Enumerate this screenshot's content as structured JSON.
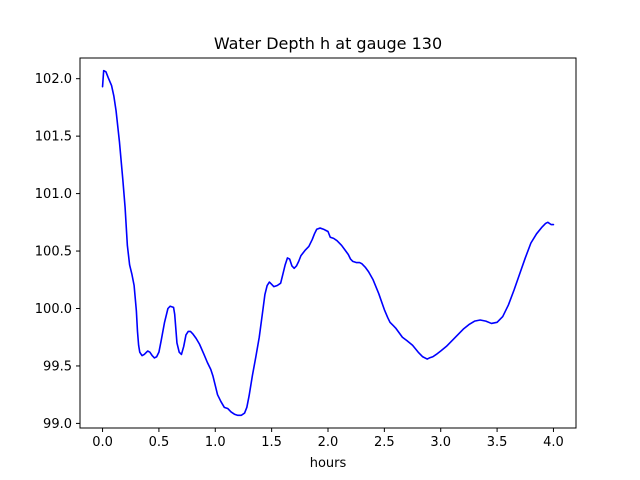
{
  "chart_data": {
    "type": "line",
    "title": "Water Depth h at gauge 130",
    "xlabel": "hours",
    "ylabel": "",
    "xlim": [
      -0.2,
      4.2
    ],
    "ylim": [
      98.96,
      102.18
    ],
    "xticks": [
      0.0,
      0.5,
      1.0,
      1.5,
      2.0,
      2.5,
      3.0,
      3.5,
      4.0
    ],
    "xtick_labels": [
      "0.0",
      "0.5",
      "1.0",
      "1.5",
      "2.0",
      "2.5",
      "3.0",
      "3.5",
      "4.0"
    ],
    "yticks": [
      99.0,
      99.5,
      100.0,
      100.5,
      101.0,
      101.5,
      102.0
    ],
    "ytick_labels": [
      "99.0",
      "99.5",
      "100.0",
      "100.5",
      "101.0",
      "101.5",
      "102.0"
    ],
    "grid": false,
    "series": [
      {
        "color": "#0000ff",
        "x": [
          0.0,
          0.01,
          0.03,
          0.05,
          0.08,
          0.1,
          0.12,
          0.15,
          0.18,
          0.2,
          0.22,
          0.24,
          0.26,
          0.28,
          0.3,
          0.31,
          0.32,
          0.33,
          0.35,
          0.37,
          0.4,
          0.42,
          0.44,
          0.46,
          0.48,
          0.5,
          0.52,
          0.55,
          0.58,
          0.6,
          0.63,
          0.64,
          0.66,
          0.68,
          0.7,
          0.72,
          0.74,
          0.76,
          0.78,
          0.8,
          0.83,
          0.86,
          0.9,
          0.93,
          0.96,
          0.98,
          1.0,
          1.02,
          1.05,
          1.08,
          1.11,
          1.14,
          1.17,
          1.2,
          1.23,
          1.26,
          1.28,
          1.3,
          1.33,
          1.36,
          1.39,
          1.42,
          1.44,
          1.46,
          1.48,
          1.5,
          1.52,
          1.55,
          1.58,
          1.6,
          1.62,
          1.64,
          1.66,
          1.68,
          1.7,
          1.72,
          1.74,
          1.76,
          1.8,
          1.83,
          1.86,
          1.88,
          1.9,
          1.93,
          1.96,
          1.98,
          2.0,
          2.02,
          2.05,
          2.08,
          2.12,
          2.15,
          2.18,
          2.2,
          2.22,
          2.25,
          2.28,
          2.3,
          2.33,
          2.36,
          2.4,
          2.45,
          2.5,
          2.53,
          2.55,
          2.58,
          2.6,
          2.63,
          2.66,
          2.7,
          2.75,
          2.8,
          2.84,
          2.88,
          2.9,
          2.93,
          2.96,
          3.0,
          3.05,
          3.1,
          3.15,
          3.2,
          3.25,
          3.3,
          3.35,
          3.4,
          3.45,
          3.5,
          3.55,
          3.6,
          3.65,
          3.7,
          3.75,
          3.8,
          3.85,
          3.9,
          3.93,
          3.95,
          3.98,
          4.0
        ],
        "y": [
          101.93,
          102.07,
          102.06,
          102.01,
          101.94,
          101.85,
          101.72,
          101.45,
          101.12,
          100.88,
          100.55,
          100.38,
          100.3,
          100.2,
          99.98,
          99.8,
          99.68,
          99.62,
          99.59,
          99.6,
          99.63,
          99.62,
          99.59,
          99.57,
          99.58,
          99.62,
          99.72,
          99.88,
          100.0,
          100.02,
          100.01,
          99.95,
          99.7,
          99.62,
          99.6,
          99.67,
          99.77,
          99.8,
          99.8,
          99.78,
          99.74,
          99.69,
          99.6,
          99.53,
          99.47,
          99.41,
          99.33,
          99.25,
          99.19,
          99.14,
          99.13,
          99.1,
          99.08,
          99.07,
          99.07,
          99.09,
          99.14,
          99.24,
          99.42,
          99.58,
          99.75,
          99.97,
          100.12,
          100.2,
          100.23,
          100.21,
          100.19,
          100.2,
          100.22,
          100.3,
          100.38,
          100.44,
          100.43,
          100.37,
          100.35,
          100.37,
          100.41,
          100.46,
          100.51,
          100.54,
          100.6,
          100.65,
          100.69,
          100.7,
          100.69,
          100.68,
          100.67,
          100.62,
          100.61,
          100.59,
          100.55,
          100.51,
          100.47,
          100.43,
          100.41,
          100.4,
          100.4,
          100.39,
          100.36,
          100.32,
          100.25,
          100.13,
          99.99,
          99.92,
          99.88,
          99.85,
          99.83,
          99.79,
          99.75,
          99.72,
          99.68,
          99.62,
          99.58,
          99.56,
          99.57,
          99.58,
          99.6,
          99.63,
          99.67,
          99.72,
          99.77,
          99.82,
          99.86,
          99.89,
          99.9,
          99.89,
          99.87,
          99.88,
          99.93,
          100.03,
          100.16,
          100.3,
          100.44,
          100.57,
          100.65,
          100.71,
          100.74,
          100.75,
          100.73,
          100.73
        ]
      }
    ]
  }
}
